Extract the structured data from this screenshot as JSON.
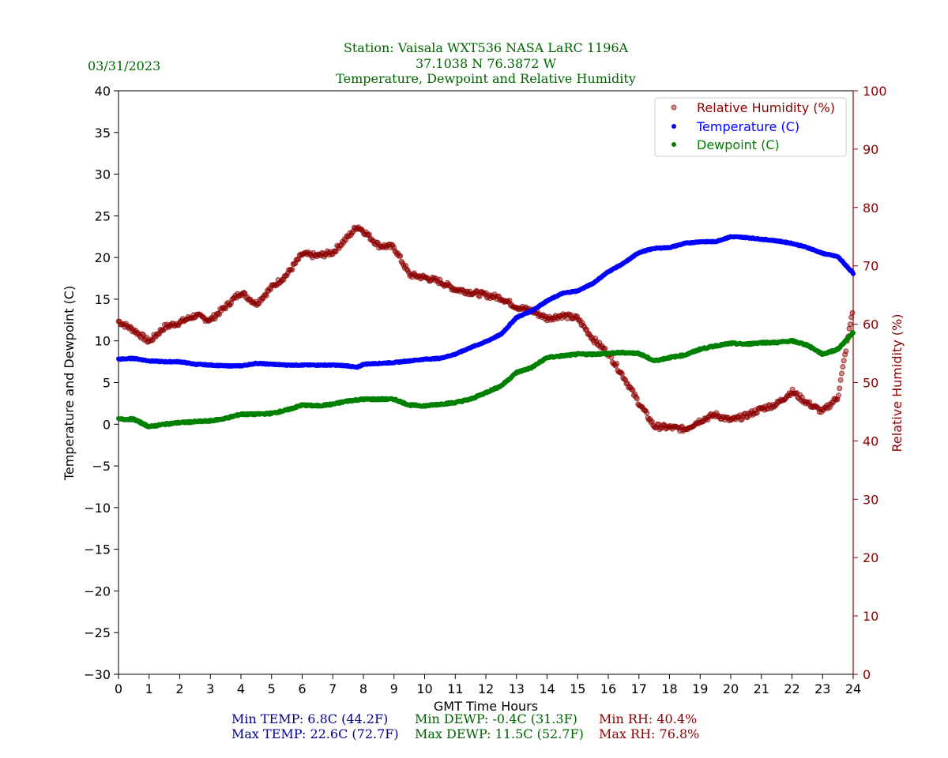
{
  "header": {
    "date": "03/31/2023",
    "title_lines": [
      "Station:  Vaisala WXT536  NASA LaRC 1196A",
      "37.1038 N 76.3872 W",
      "Temperature, Dewpoint and Relative Humidity"
    ]
  },
  "colors": {
    "title": "#006400",
    "temperature": "#0000ff",
    "dewpoint": "#008000",
    "humidity": "#8b0000",
    "stat_temp": "#00008b",
    "stat_dewp": "#006400",
    "stat_rh": "#8b0000"
  },
  "stats": {
    "min_temp": "Min TEMP: 6.8C (44.2F)",
    "max_temp": "Max TEMP: 22.6C (72.7F)",
    "min_dewp": "Min DEWP: -0.4C (31.3F)",
    "max_dewp": "Max DEWP: 11.5C (52.7F)",
    "min_rh": "Min RH: 40.4%",
    "max_rh": "Max RH: 76.8%"
  },
  "chart_data": {
    "type": "scatter",
    "xlabel": "GMT Time Hours",
    "ylabel_left": "Temperature and Dewpoint (C)",
    "ylabel_right": "Relative Humidity (%)",
    "xlim": [
      0,
      24
    ],
    "ylim_left": [
      -30,
      40
    ],
    "ylim_right": [
      0,
      100
    ],
    "xticks": [
      0,
      1,
      2,
      3,
      4,
      5,
      6,
      7,
      8,
      9,
      10,
      11,
      12,
      13,
      14,
      15,
      16,
      17,
      18,
      19,
      20,
      21,
      22,
      23,
      24
    ],
    "yticks_left": [
      40,
      35,
      30,
      25,
      20,
      15,
      10,
      5,
      0,
      -5,
      -10,
      -15,
      -20,
      -25,
      -30
    ],
    "yticks_left_labels": [
      "40",
      "35",
      "30",
      "25",
      "20",
      "15",
      "10",
      "5",
      "0",
      "−5",
      "−10",
      "−15",
      "−20",
      "−25",
      "−30"
    ],
    "yticks_right": [
      100,
      90,
      80,
      70,
      60,
      50,
      40,
      30,
      20,
      10,
      0
    ],
    "legend": {
      "position": "top-right",
      "entries": [
        "Relative Humidity (%)",
        "Temperature (C)",
        "Dewpoint (C)"
      ]
    },
    "series": [
      {
        "name": "Temperature (C)",
        "axis": "left",
        "x": [
          0,
          0.5,
          1,
          1.5,
          2,
          2.5,
          3,
          3.5,
          4,
          4.5,
          5,
          5.5,
          6,
          6.5,
          7,
          7.5,
          7.8,
          8,
          8.5,
          9,
          9.5,
          10,
          10.5,
          11,
          11.5,
          12,
          12.5,
          13,
          13.5,
          14,
          14.5,
          15,
          15.5,
          16,
          16.5,
          17,
          17.5,
          18,
          18.5,
          19,
          19.5,
          20,
          20.5,
          21,
          21.5,
          22,
          22.5,
          23,
          23.5,
          24
        ],
        "y": [
          7.8,
          7.9,
          7.6,
          7.5,
          7.5,
          7.2,
          7.1,
          7.0,
          7.0,
          7.3,
          7.2,
          7.1,
          7.1,
          7.1,
          7.1,
          7.0,
          6.8,
          7.2,
          7.3,
          7.4,
          7.6,
          7.8,
          7.9,
          8.4,
          9.2,
          9.9,
          10.8,
          12.8,
          13.6,
          14.8,
          15.7,
          16.0,
          16.9,
          18.3,
          19.3,
          20.6,
          21.1,
          21.2,
          21.7,
          21.9,
          21.9,
          22.5,
          22.4,
          22.2,
          22.0,
          21.7,
          21.2,
          20.5,
          20.1,
          18.1
        ]
      },
      {
        "name": "Dewpoint (C)",
        "axis": "left",
        "x": [
          0,
          0.5,
          1,
          1.5,
          2,
          2.5,
          3,
          3.5,
          4,
          4.5,
          5,
          5.5,
          6,
          6.5,
          7,
          7.5,
          8,
          8.5,
          9,
          9.5,
          10,
          10.5,
          11,
          11.5,
          12,
          12.5,
          13,
          13.5,
          14,
          14.5,
          15,
          15.5,
          16,
          16.5,
          17,
          17.5,
          18,
          18.5,
          19,
          19.5,
          20,
          20.5,
          21,
          21.5,
          22,
          22.5,
          23,
          23.5,
          24
        ],
        "y": [
          0.6,
          0.6,
          -0.3,
          0.0,
          0.2,
          0.3,
          0.4,
          0.7,
          1.2,
          1.2,
          1.3,
          1.7,
          2.3,
          2.2,
          2.4,
          2.8,
          3.0,
          3.0,
          3.0,
          2.3,
          2.2,
          2.4,
          2.6,
          3.0,
          3.8,
          4.6,
          6.2,
          6.8,
          8.0,
          8.2,
          8.4,
          8.4,
          8.5,
          8.6,
          8.5,
          7.6,
          8.0,
          8.3,
          9.0,
          9.4,
          9.7,
          9.6,
          9.8,
          9.8,
          10.0,
          9.5,
          8.4,
          9.0,
          11.0
        ]
      },
      {
        "name": "Relative Humidity (%)",
        "axis": "right",
        "x": [
          0,
          0.5,
          1,
          1.5,
          2,
          2.5,
          3,
          3.5,
          4,
          4.5,
          5,
          5.5,
          6,
          6.5,
          7,
          7.5,
          7.8,
          8,
          8.5,
          9,
          9.5,
          10,
          10.5,
          11,
          11.5,
          12,
          12.5,
          13,
          13.5,
          14,
          14.5,
          15,
          15.5,
          16,
          16.5,
          17,
          17.5,
          18,
          18.5,
          19,
          19.5,
          20,
          20.5,
          21,
          21.5,
          22,
          22.5,
          23,
          23.5,
          24
        ],
        "y": [
          60.5,
          59.0,
          57.0,
          59.5,
          60.3,
          61.5,
          60.7,
          63.0,
          65.5,
          63.5,
          66.3,
          68.5,
          72.0,
          71.7,
          72.3,
          75.0,
          76.8,
          76.0,
          73.5,
          73.2,
          68.5,
          68.0,
          67.3,
          66.0,
          65.5,
          65.0,
          64.5,
          63.0,
          62.3,
          61.0,
          61.5,
          61.0,
          57.5,
          55.0,
          51.0,
          46.5,
          42.5,
          42.3,
          42.0,
          43.5,
          44.5,
          43.5,
          44.3,
          45.5,
          46.3,
          48.5,
          46.5,
          45.0,
          47.5,
          63.0
        ]
      }
    ]
  }
}
